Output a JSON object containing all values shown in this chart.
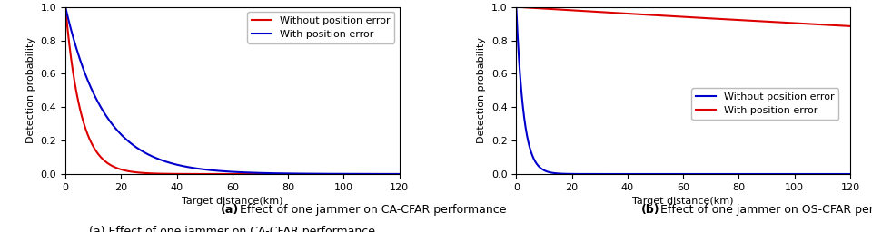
{
  "subplot_a": {
    "title": "(a) Effect of one jammer on CA-CFAR performance",
    "xlabel": "Target distance(km)",
    "ylabel": "Detection probability",
    "xlim": [
      0,
      120
    ],
    "ylim": [
      0,
      1
    ],
    "xticks": [
      0,
      20,
      40,
      60,
      80,
      100,
      120
    ],
    "yticks": [
      0,
      0.2,
      0.4,
      0.6,
      0.8,
      1
    ],
    "line1_label": "Without position error",
    "line1_color": "#dd0000",
    "line1_decay": 0.18,
    "line2_label": "With position error",
    "line2_color": "#0000cc",
    "line2_decay": 0.072
  },
  "subplot_b": {
    "title": "(b) Effect of one jammer on OS-CFAR performance",
    "xlabel": "Target distance(km)",
    "ylabel": "Detection probability",
    "xlim": [
      0,
      120
    ],
    "ylim": [
      0,
      1
    ],
    "xticks": [
      0,
      20,
      40,
      60,
      80,
      100,
      120
    ],
    "yticks": [
      0,
      0.2,
      0.4,
      0.6,
      0.8,
      1
    ],
    "line1_label": "Without position error",
    "line1_color": "#0000cc",
    "line1_decay": 0.38,
    "line2_label": "With position error",
    "line2_color": "#dd0000",
    "line2_end_val": 0.885
  },
  "label_fontsize": 8,
  "tick_fontsize": 8,
  "legend_fontsize": 8,
  "line_width": 1.5,
  "background_color": "#ffffff",
  "caption_fontsize": 9
}
